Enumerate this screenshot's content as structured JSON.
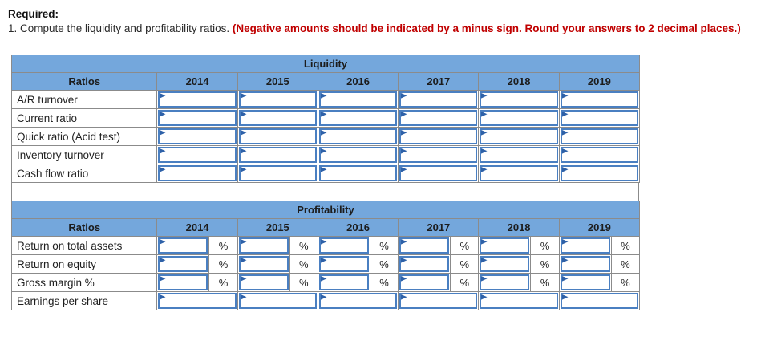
{
  "instructions": {
    "required_label": "Required:",
    "task_text": "1. Compute the liquidity and profitability ratios. ",
    "emphasis_text": "(Negative amounts should be indicated by a minus sign. Round your answers to 2 decimal places.)"
  },
  "colors": {
    "header_blue": "#74a7dc",
    "input_border_blue": "#4a7fc1",
    "flag_blue": "#2e61a8",
    "grid_gray": "#8b8b8b",
    "emphasis_red": "#c00000"
  },
  "icons": {
    "answer_flag": "flag-triangle"
  },
  "tables": [
    {
      "title": "Liquidity",
      "ratios_header": "Ratios",
      "years": [
        "2014",
        "2015",
        "2016",
        "2017",
        "2018",
        "2019"
      ],
      "rows": [
        {
          "label": "A/R turnover",
          "suffix": "",
          "values": [
            "",
            "",
            "",
            "",
            "",
            ""
          ]
        },
        {
          "label": "Current ratio",
          "suffix": "",
          "values": [
            "",
            "",
            "",
            "",
            "",
            ""
          ]
        },
        {
          "label": "Quick ratio (Acid test)",
          "suffix": "",
          "values": [
            "",
            "",
            "",
            "",
            "",
            ""
          ]
        },
        {
          "label": "Inventory turnover",
          "suffix": "",
          "values": [
            "",
            "",
            "",
            "",
            "",
            ""
          ]
        },
        {
          "label": "Cash flow ratio",
          "suffix": "",
          "values": [
            "",
            "",
            "",
            "",
            "",
            ""
          ]
        }
      ]
    },
    {
      "title": "Profitability",
      "ratios_header": "Ratios",
      "years": [
        "2014",
        "2015",
        "2016",
        "2017",
        "2018",
        "2019"
      ],
      "rows": [
        {
          "label": "Return on total assets",
          "suffix": "%",
          "values": [
            "",
            "",
            "",
            "",
            "",
            ""
          ]
        },
        {
          "label": "Return on equity",
          "suffix": "%",
          "values": [
            "",
            "",
            "",
            "",
            "",
            ""
          ]
        },
        {
          "label": "Gross margin %",
          "suffix": "%",
          "values": [
            "",
            "",
            "",
            "",
            "",
            ""
          ]
        },
        {
          "label": "Earnings per share",
          "suffix": "",
          "values": [
            "",
            "",
            "",
            "",
            "",
            ""
          ]
        }
      ]
    }
  ]
}
